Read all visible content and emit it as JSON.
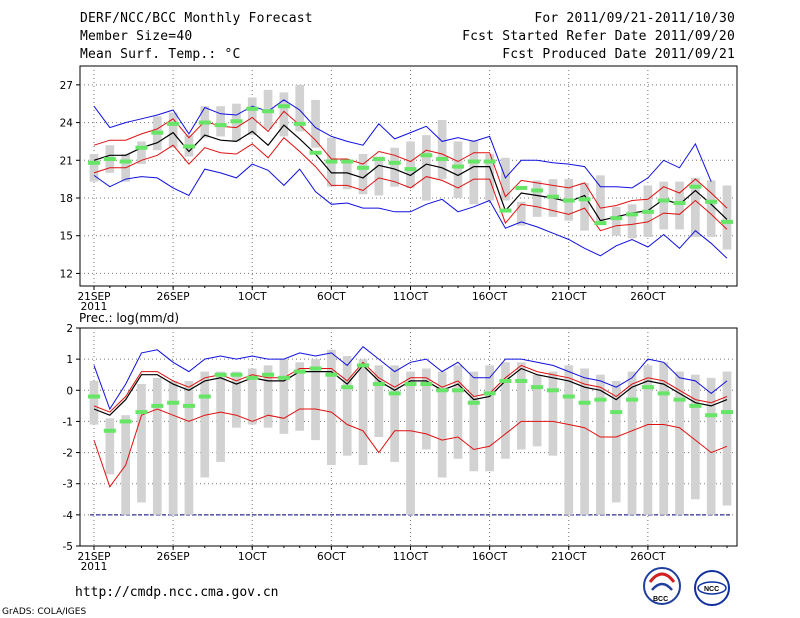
{
  "header": {
    "title": "DERF/NCC/BCC Monthly Forecast",
    "member_size": "Member Size=40",
    "variable": "Mean Surf. Temp.: °C",
    "period": "For 2011/09/21-2011/10/30",
    "started": "Fcst Started Refer Date 2011/09/20",
    "produced": "Fcst Produced Date 2011/09/21"
  },
  "footer": {
    "url": "http://cmdp.ncc.cma.gov.cn",
    "grads": "GrADS: COLA/IGES",
    "logo1": "BCC",
    "logo2": "NCC"
  },
  "colors": {
    "box": "#d2d2d2",
    "median": "#66e566",
    "mean": "#000000",
    "inner": "#e01010",
    "outer": "#1010e0",
    "ref": "#000080"
  },
  "chart_data": [
    {
      "type": "line",
      "name": "temperature",
      "title": "Mean Surf. Temp.: °C",
      "x_tick_labels": [
        "21SEP",
        "26SEP",
        "1OCT",
        "6OCT",
        "11OCT",
        "16OCT",
        "21OCT",
        "26OCT"
      ],
      "x_tick_index": [
        0,
        5,
        10,
        15,
        20,
        25,
        30,
        35
      ],
      "x_sublabel": "2011",
      "ylim": [
        11,
        28.5
      ],
      "yticks": [
        12,
        15,
        18,
        21,
        24,
        27
      ],
      "box_high": [
        21.5,
        22.2,
        21.5,
        22.5,
        24.5,
        24.8,
        23.0,
        25.3,
        25.3,
        25.5,
        26.0,
        26.6,
        26.4,
        27.0,
        25.8,
        22.8,
        21.0,
        21.5,
        21.3,
        22.0,
        22.5,
        23.0,
        24.2,
        22.5,
        22.6,
        21.5,
        21.2,
        17.7,
        19.4,
        19.5,
        19.5,
        19.2,
        19.8,
        17.3,
        17.5,
        19.0,
        19.3,
        19.3,
        19.6,
        19.4,
        19.0
      ],
      "box_low": [
        19.3,
        20.0,
        19.3,
        20.7,
        21.8,
        22.0,
        21.3,
        22.8,
        22.9,
        22.5,
        23.0,
        23.5,
        22.9,
        23.3,
        22.0,
        18.9,
        18.7,
        18.3,
        18.2,
        18.9,
        18.8,
        17.8,
        19.5,
        18.0,
        17.5,
        17.8,
        17.8,
        15.8,
        16.5,
        16.5,
        16.2,
        15.4,
        16.1,
        15.0,
        14.8,
        14.9,
        15.5,
        15.5,
        14.9,
        14.9,
        13.9
      ],
      "median": [
        20.8,
        21.1,
        20.9,
        22.0,
        23.2,
        23.9,
        22.1,
        24.0,
        23.8,
        24.1,
        25.1,
        24.9,
        25.3,
        23.9,
        21.6,
        20.9,
        20.9,
        20.4,
        21.1,
        20.8,
        20.3,
        21.4,
        21.1,
        20.5,
        20.9,
        20.9,
        17.0,
        18.8,
        18.6,
        18.1,
        17.8,
        17.9,
        16.0,
        16.4,
        16.7,
        16.9,
        17.8,
        17.6,
        18.9,
        17.7,
        16.1
      ],
      "ens_mean": [
        21.0,
        21.4,
        21.4,
        22.0,
        22.4,
        23.2,
        21.7,
        23.0,
        22.6,
        22.5,
        23.3,
        22.2,
        23.8,
        22.7,
        21.5,
        20.0,
        20.0,
        19.6,
        20.6,
        20.3,
        19.8,
        20.7,
        20.4,
        19.8,
        20.5,
        20.5,
        17.0,
        18.4,
        18.2,
        18.0,
        17.7,
        18.2,
        16.2,
        16.5,
        16.8,
        17.0,
        17.9,
        17.5,
        18.6,
        17.5,
        16.3
      ],
      "inner_upper": [
        22.2,
        22.6,
        22.6,
        23.1,
        23.5,
        24.3,
        22.8,
        24.1,
        23.7,
        23.6,
        24.4,
        23.3,
        24.9,
        23.8,
        22.6,
        21.1,
        21.1,
        20.7,
        21.7,
        21.4,
        20.9,
        21.8,
        21.5,
        20.9,
        21.6,
        21.6,
        18.1,
        19.4,
        19.2,
        19.0,
        18.8,
        19.2,
        17.2,
        17.4,
        17.8,
        17.9,
        18.9,
        18.4,
        19.5,
        18.4,
        17.2
      ],
      "inner_lower": [
        20.0,
        20.4,
        20.4,
        21.0,
        21.4,
        22.2,
        20.7,
        22.0,
        21.6,
        21.5,
        22.3,
        21.2,
        22.8,
        21.7,
        20.5,
        19.0,
        19.0,
        18.6,
        19.6,
        19.3,
        18.8,
        19.7,
        19.4,
        18.8,
        19.5,
        19.5,
        16.0,
        17.5,
        17.3,
        17.0,
        16.7,
        17.2,
        15.4,
        15.8,
        15.9,
        16.1,
        16.8,
        16.7,
        17.8,
        16.7,
        15.5
      ],
      "outer_upper": [
        25.3,
        23.6,
        24.0,
        24.3,
        24.6,
        25.0,
        23.1,
        25.2,
        24.7,
        24.6,
        25.3,
        24.9,
        25.8,
        25.0,
        23.6,
        22.9,
        22.5,
        22.2,
        23.9,
        22.7,
        23.2,
        23.7,
        22.5,
        22.8,
        22.5,
        22.9,
        19.6,
        21.0,
        21.0,
        20.8,
        20.7,
        20.5,
        18.9,
        18.9,
        18.8,
        19.6,
        21.0,
        20.4,
        22.3,
        19.3,
        null
      ],
      "outer_lower": [
        19.8,
        18.9,
        19.5,
        19.7,
        19.6,
        18.8,
        18.2,
        20.3,
        20.0,
        19.6,
        20.7,
        20.2,
        19.0,
        20.3,
        18.5,
        17.5,
        17.6,
        17.2,
        17.2,
        16.9,
        16.9,
        17.5,
        17.9,
        16.9,
        17.3,
        17.8,
        15.6,
        16.1,
        15.7,
        15.2,
        14.7,
        14.0,
        13.4,
        14.2,
        14.7,
        14.1,
        15.1,
        14.0,
        15.4,
        14.4,
        13.2
      ]
    },
    {
      "type": "line",
      "name": "precipitation",
      "title": "Prec.: log(mm/d)",
      "x_tick_labels": [
        "21SEP",
        "26SEP",
        "1OCT",
        "6OCT",
        "11OCT",
        "16OCT",
        "21OCT",
        "26OCT"
      ],
      "x_tick_index": [
        0,
        5,
        10,
        15,
        20,
        25,
        30,
        35
      ],
      "x_sublabel": "2011",
      "ylim": [
        -5,
        2
      ],
      "yticks": [
        -5,
        -4,
        -3,
        -2,
        -1,
        0,
        1,
        2
      ],
      "ref_line": -4,
      "box_high": [
        0.3,
        -0.9,
        -0.8,
        0.2,
        0.4,
        0.3,
        0.3,
        0.6,
        0.6,
        0.6,
        0.7,
        0.8,
        1.0,
        0.9,
        1.0,
        1.3,
        1.1,
        1.0,
        0.8,
        0.8,
        0.6,
        0.7,
        0.6,
        0.8,
        0.6,
        0.8,
        0.9,
        0.9,
        0.5,
        0.6,
        0.8,
        0.7,
        0.5,
        0.3,
        0.6,
        0.8,
        0.9,
        0.6,
        0.5,
        0.4,
        0.6
      ],
      "box_low": [
        -1.1,
        -2.7,
        -4.0,
        -3.6,
        -4.0,
        -4.0,
        -4.0,
        -2.8,
        -2.3,
        -1.2,
        -1.1,
        -1.2,
        -1.4,
        -1.3,
        -1.6,
        -2.4,
        -2.1,
        -2.4,
        -1.5,
        -2.3,
        -4.0,
        -1.9,
        -2.8,
        -2.2,
        -2.6,
        -2.6,
        -2.2,
        -1.9,
        -1.8,
        -2.1,
        -4.0,
        -4.0,
        -4.0,
        -3.6,
        -4.0,
        -4.0,
        -4.0,
        -4.0,
        -3.5,
        -4.0,
        -3.7
      ],
      "median": [
        -0.2,
        -1.3,
        -1.0,
        -0.7,
        -0.5,
        -0.4,
        -0.5,
        -0.2,
        0.5,
        0.5,
        0.4,
        0.5,
        0.4,
        0.6,
        0.7,
        0.5,
        0.1,
        0.8,
        0.2,
        -0.1,
        0.2,
        0.2,
        0.0,
        0.0,
        -0.4,
        -0.1,
        0.3,
        0.3,
        0.1,
        0.0,
        -0.2,
        -0.4,
        -0.3,
        -0.7,
        -0.3,
        0.1,
        -0.1,
        -0.3,
        -0.5,
        -0.8,
        -0.7
      ],
      "ens_mean": [
        -0.6,
        -0.8,
        -0.3,
        0.5,
        0.5,
        0.2,
        0.0,
        0.3,
        0.4,
        0.2,
        0.4,
        0.3,
        0.3,
        0.6,
        0.6,
        0.6,
        0.2,
        0.8,
        0.3,
        0.0,
        0.3,
        0.3,
        0.0,
        0.2,
        -0.3,
        -0.2,
        0.3,
        0.7,
        0.5,
        0.4,
        0.3,
        0.1,
        0.0,
        -0.3,
        0.1,
        0.3,
        0.2,
        -0.1,
        -0.4,
        -0.5,
        -0.3
      ],
      "inner_upper": [
        -0.5,
        -0.7,
        -0.2,
        0.6,
        0.6,
        0.3,
        0.1,
        0.4,
        0.5,
        0.3,
        0.5,
        0.4,
        0.4,
        0.7,
        0.7,
        0.7,
        0.3,
        0.9,
        0.4,
        0.1,
        0.4,
        0.4,
        0.1,
        0.3,
        -0.2,
        -0.1,
        0.4,
        0.8,
        0.6,
        0.5,
        0.4,
        0.2,
        0.1,
        -0.2,
        0.2,
        0.4,
        0.3,
        0.0,
        -0.3,
        -0.4,
        -0.2
      ],
      "inner_lower": [
        -1.6,
        -3.1,
        -2.4,
        -0.8,
        -0.6,
        -0.8,
        -1.0,
        -0.8,
        -0.7,
        -0.8,
        -1.0,
        -0.8,
        -0.9,
        -0.6,
        -0.6,
        -0.7,
        -1.1,
        -1.3,
        -2.0,
        -1.3,
        -1.3,
        -1.4,
        -1.6,
        -1.5,
        -1.9,
        -1.8,
        -1.4,
        -1.0,
        -1.0,
        -1.0,
        -1.1,
        -1.2,
        -1.5,
        -1.5,
        -1.3,
        -1.1,
        -1.1,
        -1.2,
        -1.6,
        -2.0,
        -1.8
      ],
      "outer_upper": [
        0.8,
        -0.6,
        0.2,
        1.2,
        1.3,
        0.9,
        0.6,
        1.0,
        1.1,
        1.0,
        1.1,
        1.0,
        1.0,
        1.2,
        1.1,
        1.2,
        0.8,
        1.4,
        1.0,
        0.6,
        0.9,
        1.0,
        0.6,
        0.9,
        0.4,
        0.4,
        1.0,
        1.0,
        0.9,
        0.8,
        0.6,
        0.4,
        0.3,
        0.1,
        0.4,
        1.0,
        0.9,
        0.4,
        0.3,
        -0.1,
        0.3
      ]
    }
  ]
}
